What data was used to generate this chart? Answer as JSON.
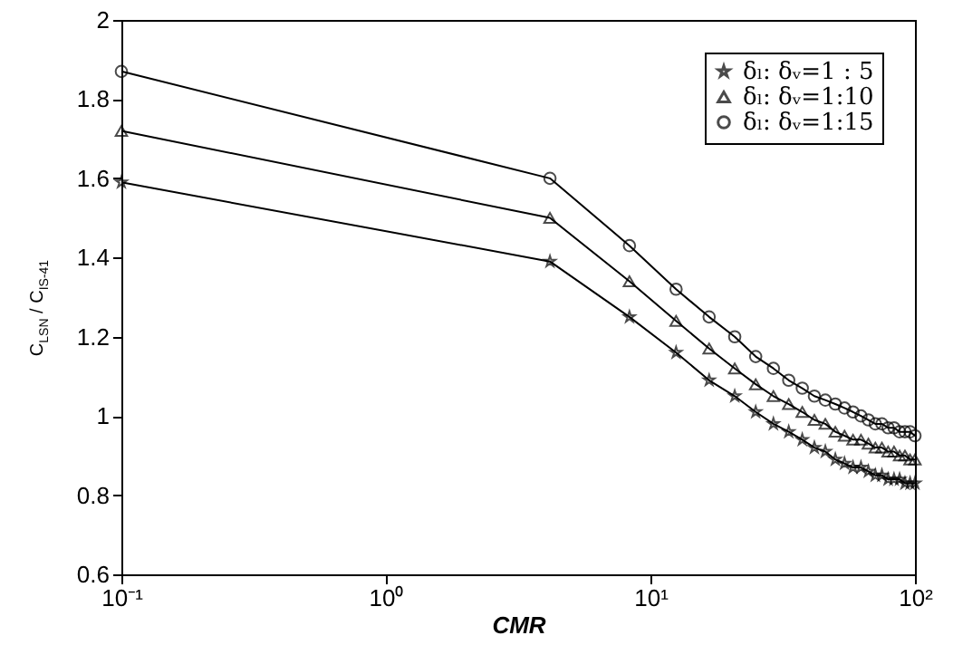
{
  "chart_data": {
    "type": "line",
    "xlabel": "CMR",
    "ylabel": "C$_{LSN}$  /  C$_{IS-41}$",
    "x": [
      0.1,
      4.17,
      8.33,
      12.5,
      16.67,
      20.83,
      25,
      29.17,
      33.33,
      37.5,
      41.67,
      45.83,
      50,
      54.17,
      58.33,
      62.5,
      66.67,
      70.83,
      75,
      79.17,
      83.33,
      87.5,
      91.67,
      95.83,
      100
    ],
    "series": [
      {
        "name": "δₗ: δᵥ=1 : 5",
        "color": "#000000",
        "marker": "star",
        "values": [
          1.59,
          1.39,
          1.25,
          1.16,
          1.09,
          1.05,
          1.01,
          0.98,
          0.96,
          0.94,
          0.92,
          0.91,
          0.89,
          0.88,
          0.87,
          0.87,
          0.86,
          0.85,
          0.85,
          0.84,
          0.84,
          0.84,
          0.83,
          0.83,
          0.83
        ]
      },
      {
        "name": "δₗ: δᵥ=1:10",
        "color": "#000000",
        "marker": "triangle",
        "values": [
          1.72,
          1.5,
          1.34,
          1.24,
          1.17,
          1.12,
          1.08,
          1.05,
          1.03,
          1.01,
          0.99,
          0.98,
          0.96,
          0.95,
          0.94,
          0.94,
          0.93,
          0.92,
          0.92,
          0.91,
          0.91,
          0.9,
          0.9,
          0.89,
          0.89
        ]
      },
      {
        "name": "δₗ: δᵥ=1:15",
        "color": "#000000",
        "marker": "circle",
        "values": [
          1.87,
          1.6,
          1.43,
          1.32,
          1.25,
          1.2,
          1.15,
          1.12,
          1.09,
          1.07,
          1.05,
          1.04,
          1.03,
          1.02,
          1.01,
          1.0,
          0.99,
          0.98,
          0.98,
          0.97,
          0.97,
          0.96,
          0.96,
          0.96,
          0.95
        ]
      }
    ],
    "log": "x",
    "xlim": [
      0.1,
      100
    ],
    "xticks": [
      {
        "value": 0.1,
        "label": "10⁻¹"
      },
      {
        "value": 1,
        "label": "10⁰"
      },
      {
        "value": 10,
        "label": "10¹"
      },
      {
        "value": 100,
        "label": "10²"
      }
    ],
    "ylim": [
      0.6,
      2
    ],
    "yticks": [
      0.6,
      0.8,
      1,
      1.2,
      1.4,
      1.6,
      1.8,
      2
    ],
    "grid": false,
    "legend": "top right",
    "line_style": "solid"
  }
}
